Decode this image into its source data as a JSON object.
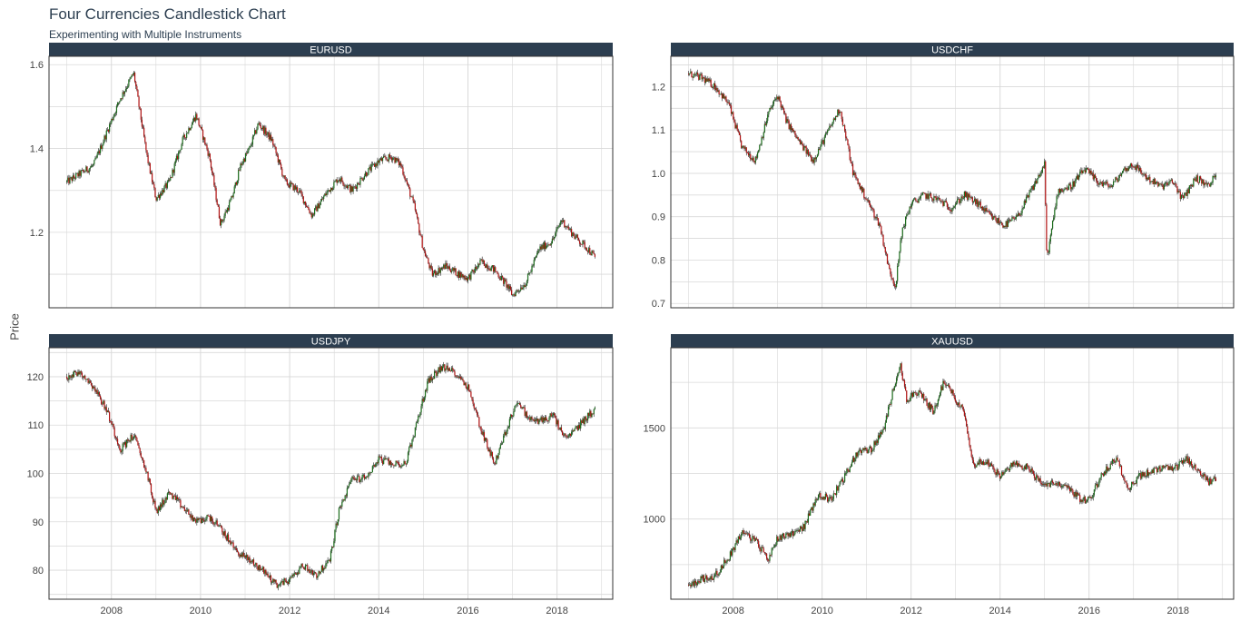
{
  "title": "Four Currencies Candlestick Chart",
  "subtitle": "Experimenting with Multiple Instruments",
  "ylabel": "Price",
  "colors": {
    "up": "#1a6b1a",
    "down": "#b01010",
    "wick": "#222222",
    "strip": "#2c3e50",
    "grid": "#d9d9d9"
  },
  "chart_data": [
    {
      "type": "line",
      "name": "EURUSD",
      "x_ticks": [
        "2008",
        "2010",
        "2012",
        "2014",
        "2016",
        "2018"
      ],
      "y_ticks": [
        "1.2",
        "1.4",
        "1.6"
      ],
      "ylim": [
        1.02,
        1.62
      ],
      "series": [
        {
          "x": [
            2007.0,
            2007.3,
            2007.6,
            2007.9,
            2008.2,
            2008.5,
            2008.8,
            2009.0,
            2009.3,
            2009.6,
            2009.9,
            2010.2,
            2010.45,
            2010.7,
            2010.9,
            2011.1,
            2011.3,
            2011.6,
            2011.9,
            2012.2,
            2012.5,
            2012.8,
            2013.1,
            2013.4,
            2013.7,
            2014.0,
            2014.3,
            2014.5,
            2014.8,
            2015.0,
            2015.2,
            2015.5,
            2015.8,
            2016.0,
            2016.3,
            2016.6,
            2016.9,
            2017.0,
            2017.3,
            2017.6,
            2017.9,
            2018.1,
            2018.4,
            2018.7,
            2018.85
          ],
          "y": [
            1.32,
            1.34,
            1.36,
            1.44,
            1.52,
            1.58,
            1.38,
            1.28,
            1.32,
            1.42,
            1.48,
            1.38,
            1.22,
            1.28,
            1.36,
            1.4,
            1.46,
            1.42,
            1.32,
            1.3,
            1.24,
            1.29,
            1.33,
            1.3,
            1.34,
            1.37,
            1.38,
            1.36,
            1.26,
            1.16,
            1.1,
            1.12,
            1.1,
            1.09,
            1.13,
            1.11,
            1.07,
            1.05,
            1.08,
            1.16,
            1.18,
            1.23,
            1.19,
            1.16,
            1.14
          ]
        }
      ]
    },
    {
      "type": "line",
      "name": "USDCHF",
      "x_ticks": [
        "2008",
        "2010",
        "2012",
        "2014",
        "2016",
        "2018"
      ],
      "y_ticks": [
        "0.7",
        "0.8",
        "0.9",
        "1.0",
        "1.1",
        "1.2"
      ],
      "ylim": [
        0.69,
        1.27
      ],
      "series": [
        {
          "x": [
            2007.0,
            2007.3,
            2007.6,
            2007.9,
            2008.2,
            2008.5,
            2008.8,
            2009.0,
            2009.2,
            2009.5,
            2009.8,
            2010.0,
            2010.4,
            2010.7,
            2011.0,
            2011.3,
            2011.5,
            2011.65,
            2011.8,
            2012.0,
            2012.3,
            2012.6,
            2012.9,
            2013.2,
            2013.5,
            2013.8,
            2014.1,
            2014.4,
            2014.7,
            2015.0,
            2015.05,
            2015.3,
            2015.6,
            2015.9,
            2016.2,
            2016.5,
            2016.8,
            2017.0,
            2017.3,
            2017.6,
            2017.9,
            2018.1,
            2018.4,
            2018.7,
            2018.85
          ],
          "y": [
            1.23,
            1.22,
            1.2,
            1.16,
            1.06,
            1.03,
            1.14,
            1.18,
            1.12,
            1.07,
            1.03,
            1.07,
            1.15,
            1.0,
            0.94,
            0.88,
            0.78,
            0.74,
            0.87,
            0.93,
            0.95,
            0.94,
            0.92,
            0.95,
            0.93,
            0.9,
            0.88,
            0.9,
            0.96,
            1.02,
            0.8,
            0.96,
            0.97,
            1.01,
            0.98,
            0.97,
            1.01,
            1.02,
            0.99,
            0.97,
            0.98,
            0.94,
            0.99,
            0.97,
            1.0
          ]
        }
      ]
    },
    {
      "type": "line",
      "name": "USDJPY",
      "x_ticks": [
        "2008",
        "2010",
        "2012",
        "2014",
        "2016",
        "2018"
      ],
      "y_ticks": [
        "80",
        "90",
        "100",
        "110",
        "120"
      ],
      "ylim": [
        74,
        126
      ],
      "series": [
        {
          "x": [
            2007.0,
            2007.3,
            2007.6,
            2007.9,
            2008.2,
            2008.5,
            2008.8,
            2009.0,
            2009.3,
            2009.6,
            2009.9,
            2010.2,
            2010.5,
            2010.8,
            2011.1,
            2011.4,
            2011.7,
            2012.0,
            2012.3,
            2012.6,
            2012.9,
            2013.1,
            2013.4,
            2013.7,
            2014.0,
            2014.3,
            2014.6,
            2014.9,
            2015.1,
            2015.4,
            2015.7,
            2016.0,
            2016.3,
            2016.6,
            2016.9,
            2017.1,
            2017.4,
            2017.7,
            2017.9,
            2018.2,
            2018.5,
            2018.7,
            2018.85
          ],
          "y": [
            120,
            121,
            118,
            113,
            105,
            108,
            100,
            92,
            96,
            93,
            90,
            91,
            88,
            84,
            82,
            80,
            77,
            78,
            81,
            79,
            82,
            92,
            99,
            99,
            103,
            102,
            102,
            112,
            119,
            122,
            121,
            118,
            109,
            102,
            110,
            115,
            111,
            111,
            112,
            107,
            110,
            112,
            113
          ]
        }
      ]
    },
    {
      "type": "line",
      "name": "XAUUSD",
      "x_ticks": [
        "2008",
        "2010",
        "2012",
        "2014",
        "2016",
        "2018"
      ],
      "y_ticks": [
        "1000",
        "1500"
      ],
      "ylim": [
        560,
        1940
      ],
      "series": [
        {
          "x": [
            2007.0,
            2007.3,
            2007.6,
            2007.9,
            2008.2,
            2008.5,
            2008.8,
            2009.0,
            2009.3,
            2009.6,
            2009.9,
            2010.2,
            2010.5,
            2010.8,
            2011.1,
            2011.4,
            2011.6,
            2011.75,
            2011.9,
            2012.2,
            2012.5,
            2012.75,
            2013.0,
            2013.2,
            2013.4,
            2013.7,
            2014.0,
            2014.3,
            2014.6,
            2014.9,
            2015.2,
            2015.5,
            2015.8,
            2016.0,
            2016.3,
            2016.6,
            2016.9,
            2017.1,
            2017.4,
            2017.7,
            2017.9,
            2018.2,
            2018.5,
            2018.7,
            2018.85
          ],
          "y": [
            640,
            670,
            690,
            790,
            930,
            880,
            780,
            900,
            920,
            960,
            1130,
            1110,
            1230,
            1370,
            1380,
            1500,
            1720,
            1850,
            1660,
            1690,
            1590,
            1760,
            1660,
            1580,
            1300,
            1320,
            1230,
            1300,
            1290,
            1200,
            1190,
            1180,
            1110,
            1100,
            1250,
            1330,
            1170,
            1230,
            1260,
            1280,
            1270,
            1330,
            1250,
            1200,
            1220
          ]
        }
      ]
    }
  ]
}
